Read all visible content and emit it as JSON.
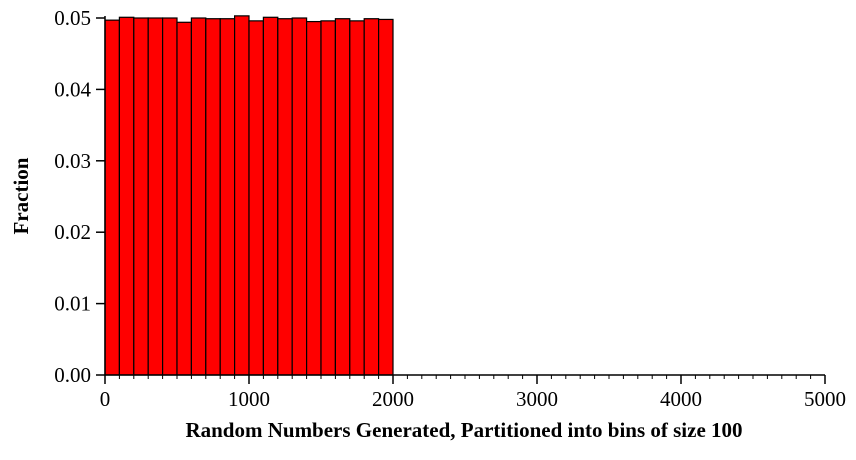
{
  "chart_data": {
    "type": "bar",
    "title": "",
    "xlabel": "Random Numbers Generated, Partitioned into bins of size 100",
    "ylabel": "Fraction",
    "xlim": [
      0,
      5000
    ],
    "ylim": [
      0,
      0.05
    ],
    "bin_width": 100,
    "x_major_ticks": [
      0,
      1000,
      2000,
      3000,
      4000,
      5000
    ],
    "x_tick_labels": [
      "0",
      "1000",
      "2000",
      "3000",
      "4000",
      "5000"
    ],
    "x_minor_tick_step": 100,
    "y_ticks": [
      0,
      0.01,
      0.02,
      0.03,
      0.04,
      0.05
    ],
    "y_tick_labels": [
      "0.00",
      "0.01",
      "0.02",
      "0.03",
      "0.04",
      "0.05"
    ],
    "grid": false,
    "legend": "none",
    "bar_color": "#ff0000",
    "edge_color": "#000000",
    "bins": [
      {
        "start": 0,
        "value": 0.0497
      },
      {
        "start": 100,
        "value": 0.0501
      },
      {
        "start": 200,
        "value": 0.05
      },
      {
        "start": 300,
        "value": 0.05
      },
      {
        "start": 400,
        "value": 0.05
      },
      {
        "start": 500,
        "value": 0.0494
      },
      {
        "start": 600,
        "value": 0.05
      },
      {
        "start": 700,
        "value": 0.0499
      },
      {
        "start": 800,
        "value": 0.0499
      },
      {
        "start": 900,
        "value": 0.0503
      },
      {
        "start": 1000,
        "value": 0.0496
      },
      {
        "start": 1100,
        "value": 0.0501
      },
      {
        "start": 1200,
        "value": 0.0499
      },
      {
        "start": 1300,
        "value": 0.05
      },
      {
        "start": 1400,
        "value": 0.0495
      },
      {
        "start": 1500,
        "value": 0.0496
      },
      {
        "start": 1600,
        "value": 0.0499
      },
      {
        "start": 1700,
        "value": 0.0496
      },
      {
        "start": 1800,
        "value": 0.0499
      },
      {
        "start": 1900,
        "value": 0.0498
      }
    ]
  }
}
